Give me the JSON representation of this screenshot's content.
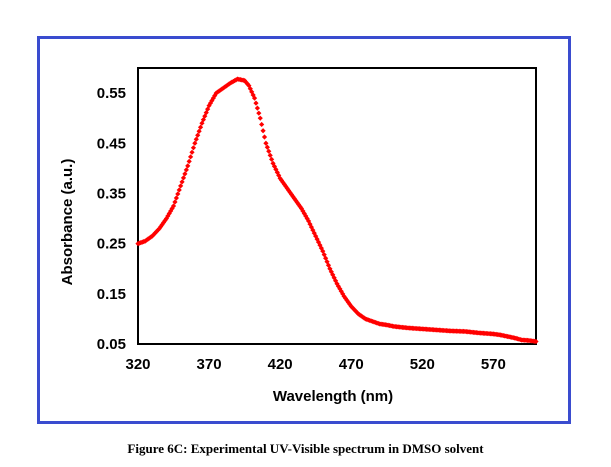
{
  "caption": "Figure 6C: Experimental UV-Visible spectrum in DMSO solvent",
  "colors": {
    "frame": "#3a4ccf",
    "series": "#ff0000",
    "axis": "#000000"
  },
  "chart_data": {
    "type": "scatter",
    "title": "",
    "xlabel": "Wavelength (nm)",
    "ylabel": "Absorbance (a.u.)",
    "xlim": [
      320,
      600
    ],
    "ylim": [
      0.05,
      0.6
    ],
    "xticks": [
      320,
      370,
      420,
      470,
      520,
      570
    ],
    "xtick_labels": [
      "320",
      "370",
      "420",
      "470",
      "520",
      "570"
    ],
    "yticks": [
      0.05,
      0.15,
      0.25,
      0.35,
      0.45,
      0.55
    ],
    "ytick_labels": [
      "0.05",
      "0.15",
      "0.25",
      "0.35",
      "0.45",
      "0.55"
    ],
    "grid": false,
    "series": [
      {
        "name": "Experimental UV-Vis",
        "marker": "diamond",
        "x": [
          320,
          325,
          330,
          335,
          340,
          345,
          350,
          355,
          360,
          365,
          370,
          375,
          380,
          385,
          390,
          395,
          398,
          402,
          406,
          410,
          415,
          420,
          425,
          430,
          435,
          440,
          445,
          450,
          455,
          460,
          465,
          470,
          475,
          480,
          485,
          490,
          495,
          500,
          510,
          520,
          530,
          540,
          550,
          560,
          570,
          575,
          580,
          585,
          590,
          595,
          600
        ],
        "y": [
          0.25,
          0.255,
          0.265,
          0.28,
          0.3,
          0.325,
          0.365,
          0.405,
          0.45,
          0.49,
          0.525,
          0.55,
          0.56,
          0.57,
          0.578,
          0.575,
          0.565,
          0.54,
          0.5,
          0.45,
          0.41,
          0.38,
          0.36,
          0.34,
          0.32,
          0.295,
          0.265,
          0.235,
          0.2,
          0.17,
          0.145,
          0.125,
          0.11,
          0.1,
          0.095,
          0.09,
          0.088,
          0.085,
          0.082,
          0.08,
          0.078,
          0.076,
          0.075,
          0.072,
          0.07,
          0.068,
          0.065,
          0.062,
          0.058,
          0.057,
          0.055
        ]
      }
    ]
  }
}
